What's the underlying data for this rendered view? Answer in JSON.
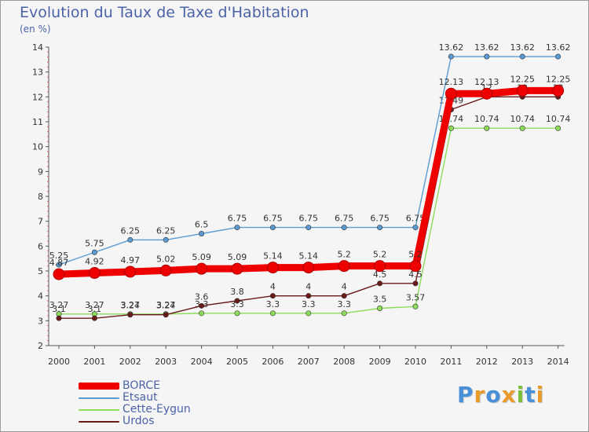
{
  "title": "Evolution du Taux de Taxe d'Habitation",
  "unit_label": "(en %)",
  "logo": {
    "text": "Proxiti",
    "letters": [
      {
        "ch": "P",
        "color": "#4a90d9"
      },
      {
        "ch": "r",
        "color": "#e89a2a"
      },
      {
        "ch": "o",
        "color": "#4a90d9"
      },
      {
        "ch": "x",
        "color": "#e89a2a"
      },
      {
        "ch": "i",
        "color": "#7bbf3a"
      },
      {
        "ch": "t",
        "color": "#4a90d9"
      },
      {
        "ch": "i",
        "color": "#e89a2a"
      }
    ]
  },
  "chart_data": {
    "type": "line",
    "title": "Evolution du Taux de Taxe d'Habitation",
    "ylabel": "(en %)",
    "xlabel": "",
    "x": [
      "2000",
      "2001",
      "2002",
      "2003",
      "2004",
      "2005",
      "2006",
      "2007",
      "2008",
      "2009",
      "2010",
      "2011",
      "2012",
      "2013",
      "2014"
    ],
    "ylim": [
      2,
      14
    ],
    "yticks": [
      2,
      3,
      4,
      5,
      6,
      7,
      8,
      9,
      10,
      11,
      12,
      13,
      14
    ],
    "grid": false,
    "legend_position": "bottom-left",
    "series": [
      {
        "name": "Cette-Eygun",
        "color": "#8ddc5a",
        "values": [
          3.27,
          3.27,
          3.27,
          3.27,
          3.3,
          3.3,
          3.3,
          3.3,
          3.3,
          3.5,
          3.57,
          10.74,
          10.74,
          10.74,
          10.74
        ],
        "labels": [
          "3.27",
          "3.27",
          "3.27",
          "3.27",
          "3.3",
          "3.3",
          "3.3",
          "3.3",
          "3.3",
          "3.5",
          "3.57",
          "10.74",
          "10.74",
          "10.74",
          "10.74"
        ]
      },
      {
        "name": "Urdos",
        "color": "#6b1a1a",
        "values": [
          3.1,
          3.1,
          3.24,
          3.24,
          3.6,
          3.8,
          4,
          4,
          4,
          4.5,
          4.5,
          11.49,
          12,
          12,
          12
        ],
        "labels": [
          "3.1",
          "3.1",
          "3.24",
          "3.24",
          "3.6",
          "3.8",
          "4",
          "4",
          "4",
          "4.5",
          "4.5",
          "11.49",
          "12",
          "12",
          "12"
        ]
      },
      {
        "name": "Etsaut",
        "color": "#5b9bd5",
        "values": [
          5.25,
          5.75,
          6.25,
          6.25,
          6.5,
          6.75,
          6.75,
          6.75,
          6.75,
          6.75,
          6.75,
          13.62,
          13.62,
          13.62,
          13.62
        ],
        "labels": [
          "5.25",
          "5.75",
          "6.25",
          "6.25",
          "6.5",
          "6.75",
          "6.75",
          "6.75",
          "6.75",
          "6.75",
          "6.75",
          "13.62",
          "13.62",
          "13.62",
          "13.62"
        ]
      },
      {
        "name": "BORCE",
        "color": "#ee0000",
        "values": [
          4.87,
          4.92,
          4.97,
          5.02,
          5.09,
          5.09,
          5.14,
          5.14,
          5.2,
          5.2,
          5.2,
          12.13,
          12.13,
          12.25,
          12.25
        ],
        "labels": [
          "4.87",
          "4.92",
          "4.97",
          "5.02",
          "5.09",
          "5.09",
          "5.14",
          "5.14",
          "5.2",
          "5.2",
          "5.2",
          "12.13",
          "12.13",
          "12.25",
          "12.25"
        ]
      }
    ],
    "legend_order": [
      "BORCE",
      "Etsaut",
      "Cette-Eygun",
      "Urdos"
    ]
  }
}
